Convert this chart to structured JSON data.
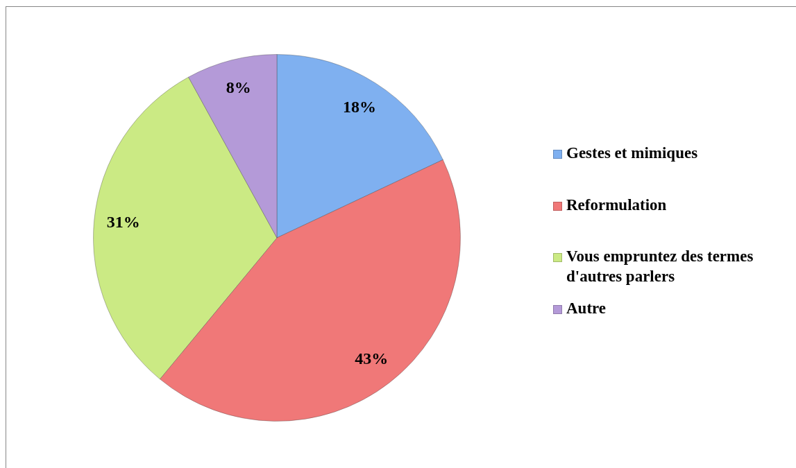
{
  "chart_data": {
    "type": "pie",
    "categories": [
      "Gestes et mimiques",
      "Reformulation",
      "Vous empruntez des termes d'autres parlers",
      "Autre"
    ],
    "values": [
      18,
      43,
      31,
      8
    ],
    "colors": [
      "#7fb0f0",
      "#f07878",
      "#cbea84",
      "#b49ad8"
    ],
    "value_labels": [
      "18%",
      "43%",
      "31%",
      "8%"
    ],
    "legend": "right"
  }
}
